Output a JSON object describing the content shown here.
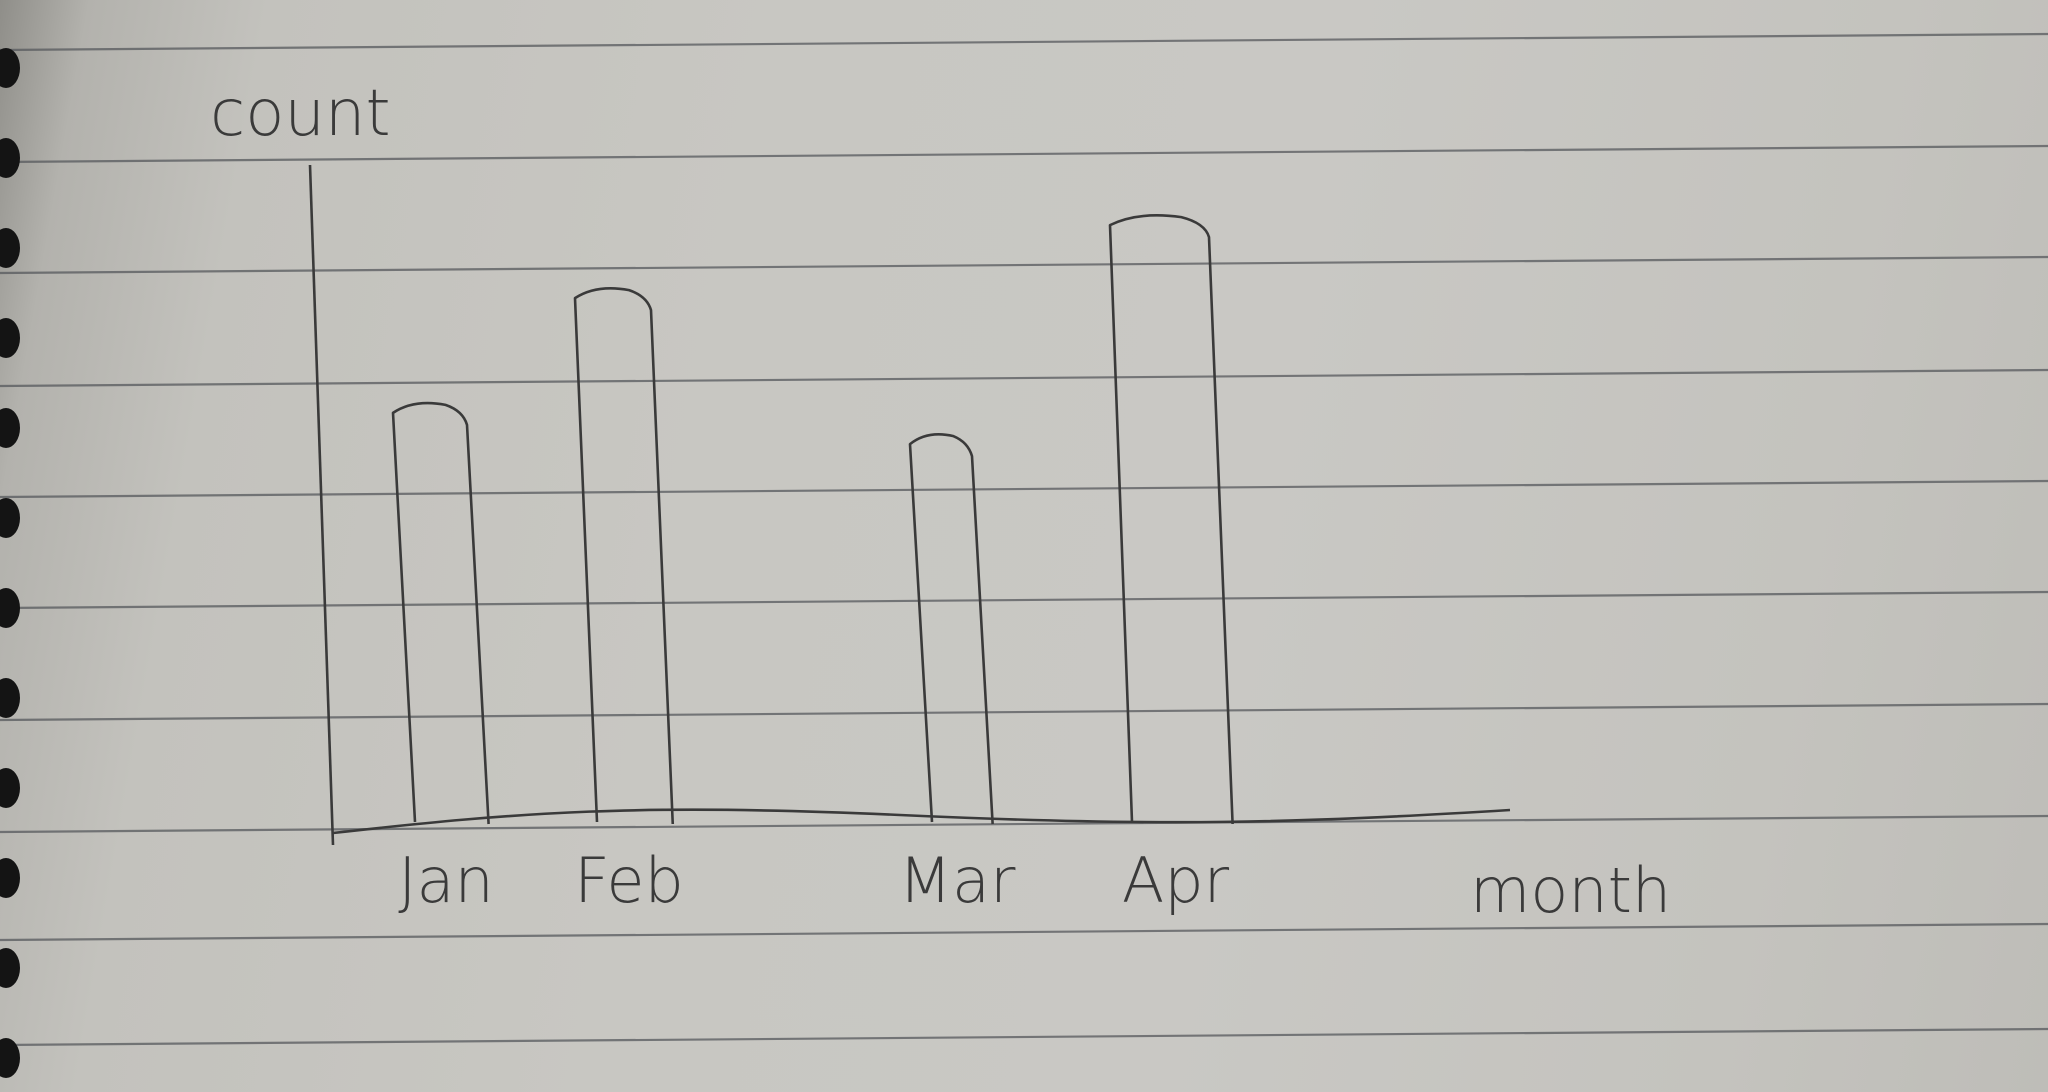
{
  "chart_data": {
    "type": "bar",
    "categories": [
      "Jan",
      "Feb",
      "Mar",
      "Apr"
    ],
    "values": [
      4,
      5.1,
      3.7,
      5.8
    ],
    "xlabel": "month",
    "ylabel": "count",
    "ylim": [
      0,
      6.3
    ],
    "grid": false,
    "legend": "none"
  },
  "colors": {
    "ink": "#3a3a3a",
    "paper": "#c8c7c2",
    "rule_line": "#55585c",
    "ring_hole": "#141414"
  }
}
